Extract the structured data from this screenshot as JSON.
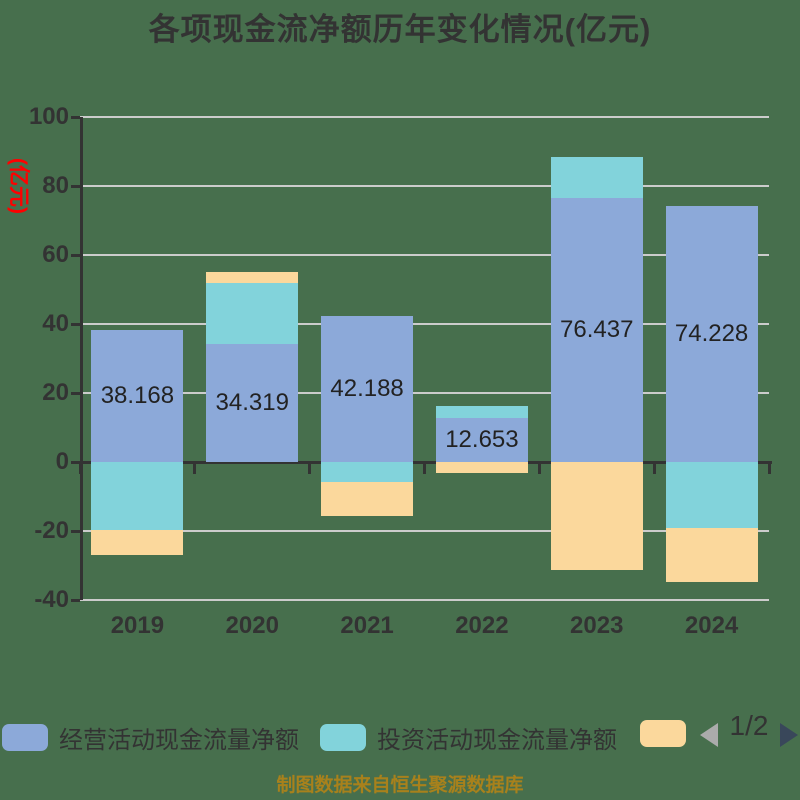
{
  "title": "各项现金流净额历年变化情况(亿元)",
  "y_axis_name": "(亿元)",
  "source_note": "制图数据来自恒生聚源数据库",
  "pagination": {
    "current": "1/2"
  },
  "colors": {
    "background": "#476F4D",
    "bar_blue": "#8CA9D9",
    "bar_teal": "#82D3DB",
    "bar_orange": "#FBD89C",
    "axis": "#333333",
    "grid": "#CCCCCC",
    "text": "#333333",
    "y_name_red": "#FF0000",
    "source_note": "#A8811C",
    "arrow_left_gray": "#ABABAB",
    "arrow_right_navy": "#39475A"
  },
  "legend": {
    "items": [
      {
        "label": "经营活动现金流量净额",
        "color": "#8CA9D9"
      },
      {
        "label": "投资活动现金流量净额",
        "color": "#82D3DB"
      },
      {
        "label": "",
        "color": "#FBD89C"
      }
    ]
  },
  "chart_data": {
    "type": "bar",
    "stacked": true,
    "title": "各项现金流净额历年变化情况(亿元)",
    "categories": [
      "2019",
      "2020",
      "2021",
      "2022",
      "2023",
      "2024"
    ],
    "series": [
      {
        "name": "经营活动现金流量净额",
        "color": "#8CA9D9",
        "values": [
          38.168,
          34.319,
          42.188,
          12.653,
          76.437,
          74.228
        ],
        "labels": [
          "38.168",
          "34.319",
          "42.188",
          "12.653",
          "76.437",
          "74.228"
        ]
      },
      {
        "name": "投资活动现金流量净额",
        "color": "#82D3DB",
        "values": [
          -19.8,
          17.7,
          -5.8,
          3.6,
          11.9,
          -19.1
        ]
      },
      {
        "name": "",
        "color": "#FBD89C",
        "values": [
          -7.2,
          3.0,
          -9.9,
          -3.3,
          -31.4,
          -15.6
        ]
      }
    ],
    "ylim": [
      -40,
      100
    ],
    "yticks": [
      100,
      80,
      60,
      40,
      20,
      0,
      -20,
      -40
    ],
    "grid": true,
    "legend_position": "bottom",
    "xlabel": "",
    "ylabel": "(亿元)"
  }
}
